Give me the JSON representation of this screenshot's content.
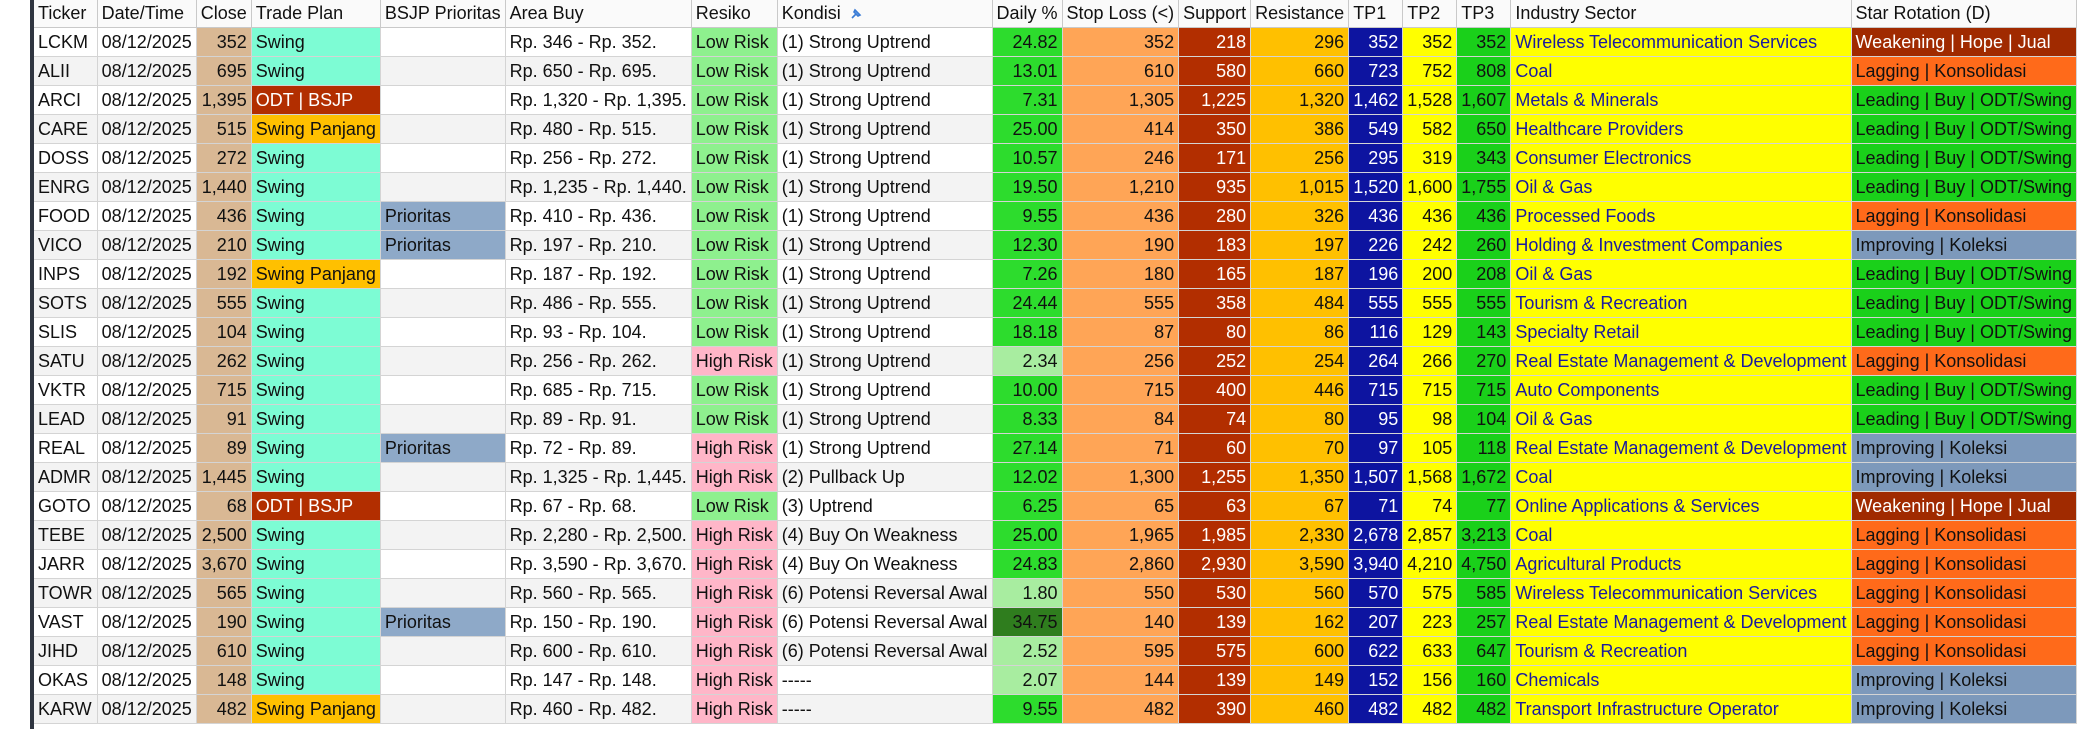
{
  "columns": [
    "Ticker",
    "Date/Time",
    "Close",
    "Trade Plan",
    "BSJP Prioritas",
    "Area Buy",
    "Resiko",
    "Kondisi",
    "Daily %",
    "Stop Loss (<)",
    "Support",
    "Resistance",
    "TP1",
    "TP2",
    "TP3",
    "Industry Sector",
    "Star Rotation (D)"
  ],
  "kondisi_icon": "pin-icon",
  "colors": {
    "close": "#d9b894",
    "swing": "#7dfcd4",
    "swing_panjang": "#ffc000",
    "odt": "#b22e00",
    "low_risk": "#8ef08e",
    "high_risk": "#ffb6c8",
    "tp1": "#0d14a0",
    "sector": "#ffff00"
  },
  "rows": [
    {
      "ticker": "LCKM",
      "date": "08/12/2025",
      "close": "352",
      "plan": "Swing",
      "prior": "",
      "area": "Rp. 346 - Rp. 352.",
      "risk": "Low Risk",
      "kondisi": "(1) Strong Uptrend",
      "daily": "24.82",
      "sl": "352",
      "sup": "218",
      "res": "296",
      "tp1": "352",
      "tp2": "352",
      "tp3": "352",
      "sector": "Wireless Telecommunication Services",
      "rot": "Weakening | Hope | Jual"
    },
    {
      "ticker": "ALII",
      "date": "08/12/2025",
      "close": "695",
      "plan": "Swing",
      "prior": "",
      "area": "Rp. 650 - Rp. 695.",
      "risk": "Low Risk",
      "kondisi": "(1) Strong Uptrend",
      "daily": "13.01",
      "sl": "610",
      "sup": "580",
      "res": "660",
      "tp1": "723",
      "tp2": "752",
      "tp3": "808",
      "sector": "Coal",
      "rot": "Lagging | Konsolidasi"
    },
    {
      "ticker": "ARCI",
      "date": "08/12/2025",
      "close": "1,395",
      "plan": "ODT | BSJP",
      "prior": "",
      "area": "Rp. 1,320 - Rp. 1,395.",
      "risk": "Low Risk",
      "kondisi": "(1) Strong Uptrend",
      "daily": "7.31",
      "sl": "1,305",
      "sup": "1,225",
      "res": "1,320",
      "tp1": "1,462",
      "tp2": "1,528",
      "tp3": "1,607",
      "sector": "Metals & Minerals",
      "rot": "Leading | Buy | ODT/Swing"
    },
    {
      "ticker": "CARE",
      "date": "08/12/2025",
      "close": "515",
      "plan": "Swing Panjang",
      "prior": "",
      "area": "Rp. 480 - Rp. 515.",
      "risk": "Low Risk",
      "kondisi": "(1) Strong Uptrend",
      "daily": "25.00",
      "sl": "414",
      "sup": "350",
      "res": "386",
      "tp1": "549",
      "tp2": "582",
      "tp3": "650",
      "sector": "Healthcare Providers",
      "rot": "Leading | Buy | ODT/Swing"
    },
    {
      "ticker": "DOSS",
      "date": "08/12/2025",
      "close": "272",
      "plan": "Swing",
      "prior": "",
      "area": "Rp. 256 - Rp. 272.",
      "risk": "Low Risk",
      "kondisi": "(1) Strong Uptrend",
      "daily": "10.57",
      "sl": "246",
      "sup": "171",
      "res": "256",
      "tp1": "295",
      "tp2": "319",
      "tp3": "343",
      "sector": "Consumer Electronics",
      "rot": "Leading | Buy | ODT/Swing"
    },
    {
      "ticker": "ENRG",
      "date": "08/12/2025",
      "close": "1,440",
      "plan": "Swing",
      "prior": "",
      "area": "Rp. 1,235 - Rp. 1,440.",
      "risk": "Low Risk",
      "kondisi": "(1) Strong Uptrend",
      "daily": "19.50",
      "sl": "1,210",
      "sup": "935",
      "res": "1,015",
      "tp1": "1,520",
      "tp2": "1,600",
      "tp3": "1,755",
      "sector": "Oil & Gas",
      "rot": "Leading | Buy | ODT/Swing"
    },
    {
      "ticker": "FOOD",
      "date": "08/12/2025",
      "close": "436",
      "plan": "Swing",
      "prior": "Prioritas",
      "area": "Rp. 410 - Rp. 436.",
      "risk": "Low Risk",
      "kondisi": "(1) Strong Uptrend",
      "daily": "9.55",
      "sl": "436",
      "sup": "280",
      "res": "326",
      "tp1": "436",
      "tp2": "436",
      "tp3": "436",
      "sector": "Processed Foods",
      "rot": "Lagging | Konsolidasi"
    },
    {
      "ticker": "VICO",
      "date": "08/12/2025",
      "close": "210",
      "plan": "Swing",
      "prior": "Prioritas",
      "area": "Rp. 197 - Rp. 210.",
      "risk": "Low Risk",
      "kondisi": "(1) Strong Uptrend",
      "daily": "12.30",
      "sl": "190",
      "sup": "183",
      "res": "197",
      "tp1": "226",
      "tp2": "242",
      "tp3": "260",
      "sector": "Holding & Investment Companies",
      "rot": "Improving | Koleksi"
    },
    {
      "ticker": "INPS",
      "date": "08/12/2025",
      "close": "192",
      "plan": "Swing Panjang",
      "prior": "",
      "area": "Rp. 187 - Rp. 192.",
      "risk": "Low Risk",
      "kondisi": "(1) Strong Uptrend",
      "daily": "7.26",
      "sl": "180",
      "sup": "165",
      "res": "187",
      "tp1": "196",
      "tp2": "200",
      "tp3": "208",
      "sector": "Oil & Gas",
      "rot": "Leading | Buy | ODT/Swing"
    },
    {
      "ticker": "SOTS",
      "date": "08/12/2025",
      "close": "555",
      "plan": "Swing",
      "prior": "",
      "area": "Rp. 486 - Rp. 555.",
      "risk": "Low Risk",
      "kondisi": "(1) Strong Uptrend",
      "daily": "24.44",
      "sl": "555",
      "sup": "358",
      "res": "484",
      "tp1": "555",
      "tp2": "555",
      "tp3": "555",
      "sector": "Tourism & Recreation",
      "rot": "Leading | Buy | ODT/Swing"
    },
    {
      "ticker": "SLIS",
      "date": "08/12/2025",
      "close": "104",
      "plan": "Swing",
      "prior": "",
      "area": "Rp. 93 - Rp. 104.",
      "risk": "Low Risk",
      "kondisi": "(1) Strong Uptrend",
      "daily": "18.18",
      "sl": "87",
      "sup": "80",
      "res": "86",
      "tp1": "116",
      "tp2": "129",
      "tp3": "143",
      "sector": "Specialty Retail",
      "rot": "Leading | Buy | ODT/Swing"
    },
    {
      "ticker": "SATU",
      "date": "08/12/2025",
      "close": "262",
      "plan": "Swing",
      "prior": "",
      "area": "Rp. 256 - Rp. 262.",
      "risk": "High Risk",
      "kondisi": "(1) Strong Uptrend",
      "daily": "2.34",
      "sl": "256",
      "sup": "252",
      "res": "254",
      "tp1": "264",
      "tp2": "266",
      "tp3": "270",
      "sector": "Real Estate Management & Development",
      "rot": "Lagging | Konsolidasi"
    },
    {
      "ticker": "VKTR",
      "date": "08/12/2025",
      "close": "715",
      "plan": "Swing",
      "prior": "",
      "area": "Rp. 685 - Rp. 715.",
      "risk": "Low Risk",
      "kondisi": "(1) Strong Uptrend",
      "daily": "10.00",
      "sl": "715",
      "sup": "400",
      "res": "446",
      "tp1": "715",
      "tp2": "715",
      "tp3": "715",
      "sector": "Auto Components",
      "rot": "Leading | Buy | ODT/Swing"
    },
    {
      "ticker": "LEAD",
      "date": "08/12/2025",
      "close": "91",
      "plan": "Swing",
      "prior": "",
      "area": "Rp. 89 - Rp. 91.",
      "risk": "Low Risk",
      "kondisi": "(1) Strong Uptrend",
      "daily": "8.33",
      "sl": "84",
      "sup": "74",
      "res": "80",
      "tp1": "95",
      "tp2": "98",
      "tp3": "104",
      "sector": "Oil & Gas",
      "rot": "Leading | Buy | ODT/Swing"
    },
    {
      "ticker": "REAL",
      "date": "08/12/2025",
      "close": "89",
      "plan": "Swing",
      "prior": "Prioritas",
      "area": "Rp. 72 - Rp. 89.",
      "risk": "High Risk",
      "kondisi": "(1) Strong Uptrend",
      "daily": "27.14",
      "sl": "71",
      "sup": "60",
      "res": "70",
      "tp1": "97",
      "tp2": "105",
      "tp3": "118",
      "sector": "Real Estate Management & Development",
      "rot": "Improving | Koleksi"
    },
    {
      "ticker": "ADMR",
      "date": "08/12/2025",
      "close": "1,445",
      "plan": "Swing",
      "prior": "",
      "area": "Rp. 1,325 - Rp. 1,445.",
      "risk": "High Risk",
      "kondisi": "(2) Pullback Up",
      "daily": "12.02",
      "sl": "1,300",
      "sup": "1,255",
      "res": "1,350",
      "tp1": "1,507",
      "tp2": "1,568",
      "tp3": "1,672",
      "sector": "Coal",
      "rot": "Improving | Koleksi"
    },
    {
      "ticker": "GOTO",
      "date": "08/12/2025",
      "close": "68",
      "plan": "ODT | BSJP",
      "prior": "",
      "area": "Rp. 67 - Rp. 68.",
      "risk": "Low Risk",
      "kondisi": "(3) Uptrend",
      "daily": "6.25",
      "sl": "65",
      "sup": "63",
      "res": "67",
      "tp1": "71",
      "tp2": "74",
      "tp3": "77",
      "sector": "Online Applications & Services",
      "rot": "Weakening | Hope | Jual"
    },
    {
      "ticker": "TEBE",
      "date": "08/12/2025",
      "close": "2,500",
      "plan": "Swing",
      "prior": "",
      "area": "Rp. 2,280 - Rp. 2,500.",
      "risk": "High Risk",
      "kondisi": "(4) Buy On Weakness",
      "daily": "25.00",
      "sl": "1,965",
      "sup": "1,985",
      "res": "2,330",
      "tp1": "2,678",
      "tp2": "2,857",
      "tp3": "3,213",
      "sector": "Coal",
      "rot": "Lagging | Konsolidasi"
    },
    {
      "ticker": "JARR",
      "date": "08/12/2025",
      "close": "3,670",
      "plan": "Swing",
      "prior": "",
      "area": "Rp. 3,590 - Rp. 3,670.",
      "risk": "High Risk",
      "kondisi": "(4) Buy On Weakness",
      "daily": "24.83",
      "sl": "2,860",
      "sup": "2,930",
      "res": "3,590",
      "tp1": "3,940",
      "tp2": "4,210",
      "tp3": "4,750",
      "sector": "Agricultural Products",
      "rot": "Lagging | Konsolidasi"
    },
    {
      "ticker": "TOWR",
      "date": "08/12/2025",
      "close": "565",
      "plan": "Swing",
      "prior": "",
      "area": "Rp. 560 - Rp. 565.",
      "risk": "High Risk",
      "kondisi": "(6) Potensi Reversal Awal",
      "daily": "1.80",
      "sl": "550",
      "sup": "530",
      "res": "560",
      "tp1": "570",
      "tp2": "575",
      "tp3": "585",
      "sector": "Wireless Telecommunication Services",
      "rot": "Lagging | Konsolidasi"
    },
    {
      "ticker": "VAST",
      "date": "08/12/2025",
      "close": "190",
      "plan": "Swing",
      "prior": "Prioritas",
      "area": "Rp. 150 - Rp. 190.",
      "risk": "High Risk",
      "kondisi": "(6) Potensi Reversal Awal",
      "daily": "34.75",
      "sl": "140",
      "sup": "139",
      "res": "162",
      "tp1": "207",
      "tp2": "223",
      "tp3": "257",
      "sector": "Real Estate Management & Development",
      "rot": "Lagging | Konsolidasi"
    },
    {
      "ticker": "JIHD",
      "date": "08/12/2025",
      "close": "610",
      "plan": "Swing",
      "prior": "",
      "area": "Rp. 600 - Rp. 610.",
      "risk": "High Risk",
      "kondisi": "(6) Potensi Reversal Awal",
      "daily": "2.52",
      "sl": "595",
      "sup": "575",
      "res": "600",
      "tp1": "622",
      "tp2": "633",
      "tp3": "647",
      "sector": "Tourism & Recreation",
      "rot": "Lagging | Konsolidasi"
    },
    {
      "ticker": "OKAS",
      "date": "08/12/2025",
      "close": "148",
      "plan": "Swing",
      "prior": "",
      "area": "Rp. 147 - Rp. 148.",
      "risk": "High Risk",
      "kondisi": "-----",
      "daily": "2.07",
      "sl": "144",
      "sup": "139",
      "res": "149",
      "tp1": "152",
      "tp2": "156",
      "tp3": "160",
      "sector": "Chemicals",
      "rot": "Improving | Koleksi"
    },
    {
      "ticker": "KARW",
      "date": "08/12/2025",
      "close": "482",
      "plan": "Swing Panjang",
      "prior": "",
      "area": "Rp. 460 - Rp. 482.",
      "risk": "High Risk",
      "kondisi": "-----",
      "daily": "9.55",
      "sl": "482",
      "sup": "390",
      "res": "460",
      "tp1": "482",
      "tp2": "482",
      "tp3": "482",
      "sector": "Transport Infrastructure Operator",
      "rot": "Improving | Koleksi"
    }
  ]
}
